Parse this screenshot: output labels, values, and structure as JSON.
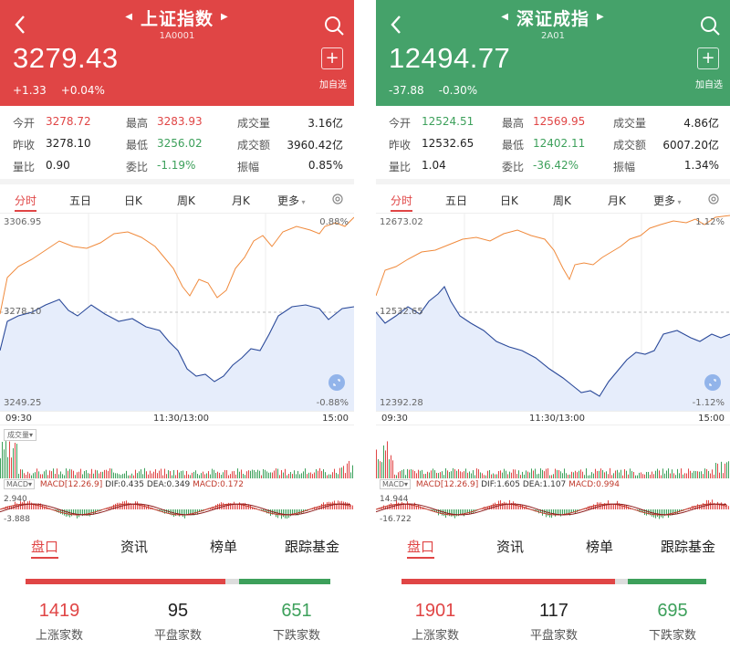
{
  "screens": [
    {
      "theme": "red",
      "header": {
        "title": "上证指数",
        "code": "1A0001",
        "price": "3279.43",
        "change": "+1.33",
        "change_pct": "+0.04%",
        "add_label": "加自选"
      },
      "stats": {
        "open_label": "今开",
        "open": "3278.72",
        "high_label": "最高",
        "high": "3283.93",
        "volume_label": "成交量",
        "volume": "3.16亿",
        "prev_close_label": "昨收",
        "prev_close": "3278.10",
        "low_label": "最低",
        "low": "3256.02",
        "amount_label": "成交额",
        "amount": "3960.42亿",
        "vol_ratio_label": "量比",
        "vol_ratio": "0.90",
        "bid_ratio_label": "委比",
        "bid_ratio": "-1.19%",
        "amplitude_label": "振幅",
        "amplitude": "0.85%"
      },
      "chart_tabs": [
        "分时",
        "五日",
        "日K",
        "周K",
        "月K",
        "更多"
      ],
      "chart": {
        "y_top": "3306.95",
        "y_mid": "3278.10",
        "y_bottom": "3249.25",
        "pct_top": "0.88%",
        "pct_bottom": "-0.88%",
        "time_start": "09:30",
        "time_mid": "11:30/13:00",
        "time_end": "15:00",
        "volume_label": "成交量",
        "macd_btn": "MACD",
        "macd_text": "MACD[12.26.9]",
        "dif_text": "DIF:0.435",
        "dea_text": "DEA:0.349",
        "macd_value_text": "MACD:0.172",
        "macd_top": "2.940",
        "macd_bottom": "-3.888"
      },
      "bottom_tabs": [
        "盘口",
        "资讯",
        "榜单",
        "跟踪基金"
      ],
      "breadth": {
        "up": "1419",
        "up_label": "上涨家数",
        "flat": "95",
        "flat_label": "平盘家数",
        "down": "651",
        "down_label": "下跌家数"
      }
    },
    {
      "theme": "green",
      "header": {
        "title": "深证成指",
        "code": "2A01",
        "price": "12494.77",
        "change": "-37.88",
        "change_pct": "-0.30%",
        "add_label": "加自选"
      },
      "stats": {
        "open_label": "今开",
        "open": "12524.51",
        "high_label": "最高",
        "high": "12569.95",
        "volume_label": "成交量",
        "volume": "4.86亿",
        "prev_close_label": "昨收",
        "prev_close": "12532.65",
        "low_label": "最低",
        "low": "12402.11",
        "amount_label": "成交额",
        "amount": "6007.20亿",
        "vol_ratio_label": "量比",
        "vol_ratio": "1.04",
        "bid_ratio_label": "委比",
        "bid_ratio": "-36.42%",
        "amplitude_label": "振幅",
        "amplitude": "1.34%"
      },
      "chart_tabs": [
        "分时",
        "五日",
        "日K",
        "周K",
        "月K",
        "更多"
      ],
      "chart": {
        "y_top": "12673.02",
        "y_mid": "12532.65",
        "y_bottom": "12392.28",
        "pct_top": "1.12%",
        "pct_bottom": "-1.12%",
        "time_start": "09:30",
        "time_mid": "11:30/13:00",
        "time_end": "15:00",
        "volume_label": "成交量",
        "macd_btn": "MACD",
        "macd_text": "MACD[12.26.9]",
        "dif_text": "DIF:1.605",
        "dea_text": "DEA:1.107",
        "macd_value_text": "MACD:0.994",
        "macd_top": "14.944",
        "macd_bottom": "-16.722"
      },
      "bottom_tabs": [
        "盘口",
        "资讯",
        "榜单",
        "跟踪基金"
      ],
      "breadth": {
        "up": "1901",
        "up_label": "上涨家数",
        "flat": "117",
        "flat_label": "平盘家数",
        "down": "695",
        "down_label": "下跌家数"
      }
    }
  ],
  "colors": {
    "red": "#e04545",
    "green": "#45a26a",
    "price_line": "#f08a3c",
    "avg_line": "#2b4a9a",
    "area_fill": "#e6edfb"
  }
}
